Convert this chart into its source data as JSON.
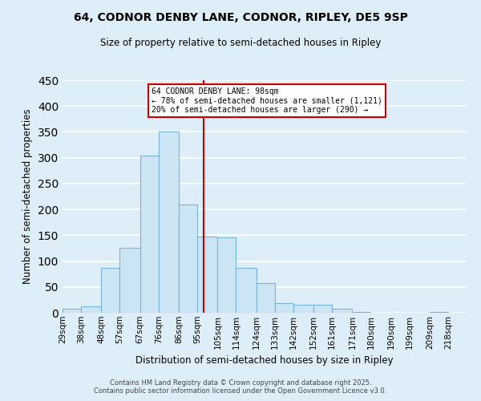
{
  "title": "64, CODNOR DENBY LANE, CODNOR, RIPLEY, DE5 9SP",
  "subtitle": "Size of property relative to semi-detached houses in Ripley",
  "xlabel": "Distribution of semi-detached houses by size in Ripley",
  "ylabel": "Number of semi-detached properties",
  "bin_labels": [
    "29sqm",
    "38sqm",
    "48sqm",
    "57sqm",
    "67sqm",
    "76sqm",
    "86sqm",
    "95sqm",
    "105sqm",
    "114sqm",
    "124sqm",
    "133sqm",
    "142sqm",
    "152sqm",
    "161sqm",
    "171sqm",
    "180sqm",
    "190sqm",
    "199sqm",
    "209sqm",
    "218sqm"
  ],
  "bin_edges": [
    29,
    38,
    48,
    57,
    67,
    76,
    86,
    95,
    105,
    114,
    124,
    133,
    142,
    152,
    161,
    171,
    180,
    190,
    199,
    209,
    218
  ],
  "bar_values": [
    7,
    12,
    87,
    126,
    304,
    350,
    210,
    148,
    146,
    87,
    57,
    19,
    15,
    15,
    8,
    2,
    0,
    0,
    0,
    1
  ],
  "bar_color": "#cce5f5",
  "bar_edge_color": "#7ab3d4",
  "property_value": 98,
  "vline_color": "#cc0000",
  "annotation_title": "64 CODNOR DENBY LANE: 98sqm",
  "annotation_line1": "← 78% of semi-detached houses are smaller (1,121)",
  "annotation_line2": "20% of semi-detached houses are larger (290) →",
  "annotation_box_color": "#ffffff",
  "annotation_border_color": "#cc0000",
  "ylim": [
    0,
    450
  ],
  "yticks": [
    0,
    50,
    100,
    150,
    200,
    250,
    300,
    350,
    400,
    450
  ],
  "background_color": "#deeef8",
  "footer_line1": "Contains HM Land Registry data © Crown copyright and database right 2025.",
  "footer_line2": "Contains public sector information licensed under the Open Government Licence v3.0."
}
